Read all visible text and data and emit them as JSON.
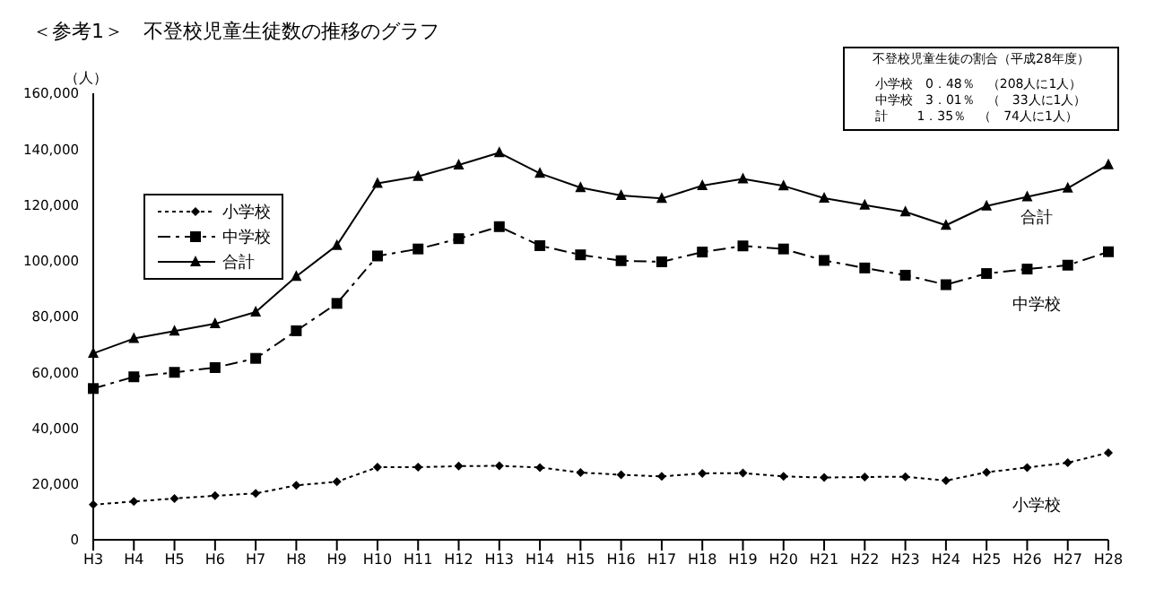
{
  "chart_data": {
    "type": "line",
    "title": "＜参考1＞　不登校児童生徒数の推移のグラフ",
    "ylabel": "（人）",
    "categories": [
      "H3",
      "H4",
      "H5",
      "H6",
      "H7",
      "H8",
      "H9",
      "H10",
      "H11",
      "H12",
      "H13",
      "H14",
      "H15",
      "H16",
      "H17",
      "H18",
      "H19",
      "H20",
      "H21",
      "H22",
      "H23",
      "H24",
      "H25",
      "H26",
      "H27",
      "H28"
    ],
    "series": [
      {
        "name": "小学校",
        "color": "#000000",
        "marker": "diamond",
        "line_style": "dotted",
        "values": [
          12600,
          13700,
          14800,
          15800,
          16600,
          19500,
          20800,
          26000,
          26000,
          26400,
          26500,
          25900,
          24100,
          23300,
          22700,
          23800,
          23900,
          22700,
          22300,
          22500,
          22600,
          21200,
          24200,
          25900,
          27600,
          31200
        ]
      },
      {
        "name": "中学校",
        "color": "#000000",
        "marker": "square",
        "line_style": "dashed",
        "values": [
          54200,
          58400,
          60000,
          61700,
          65000,
          74900,
          84700,
          101700,
          104200,
          107900,
          112200,
          105400,
          102100,
          100000,
          99600,
          103100,
          105300,
          104200,
          100100,
          97400,
          94800,
          91400,
          95400,
          97000,
          98400,
          103200
        ]
      },
      {
        "name": "合計",
        "color": "#000000",
        "marker": "triangle",
        "line_style": "solid",
        "values": [
          66800,
          72100,
          74800,
          77400,
          81600,
          94400,
          105500,
          127700,
          130200,
          134300,
          138700,
          131300,
          126200,
          123400,
          122300,
          126900,
          129300,
          126800,
          122400,
          119900,
          117500,
          112700,
          119600,
          122900,
          126000,
          134400
        ]
      }
    ],
    "ylim": [
      0,
      160000
    ],
    "yticks": [
      0,
      {
        "value": 20000,
        "label": "20,000"
      },
      {
        "value": 40000,
        "label": "40,000"
      },
      {
        "value": 60000,
        "label": "60,000"
      },
      {
        "value": 80000,
        "label": "80,000"
      },
      {
        "value": 100000,
        "label": "100,000"
      },
      {
        "value": 120000,
        "label": "120,000"
      },
      {
        "value": 140000,
        "label": "140,000"
      },
      {
        "value": 160000,
        "label": "160,000"
      }
    ],
    "legend": "top left",
    "annotations": [
      "不登校児童生徒の割合（平成28年度）",
      "小学校　0．48％　（208人に1人）",
      "中学校　3．01％　（　33人に1人）",
      "計　　 1．35％　（　74人に1人）"
    ]
  }
}
